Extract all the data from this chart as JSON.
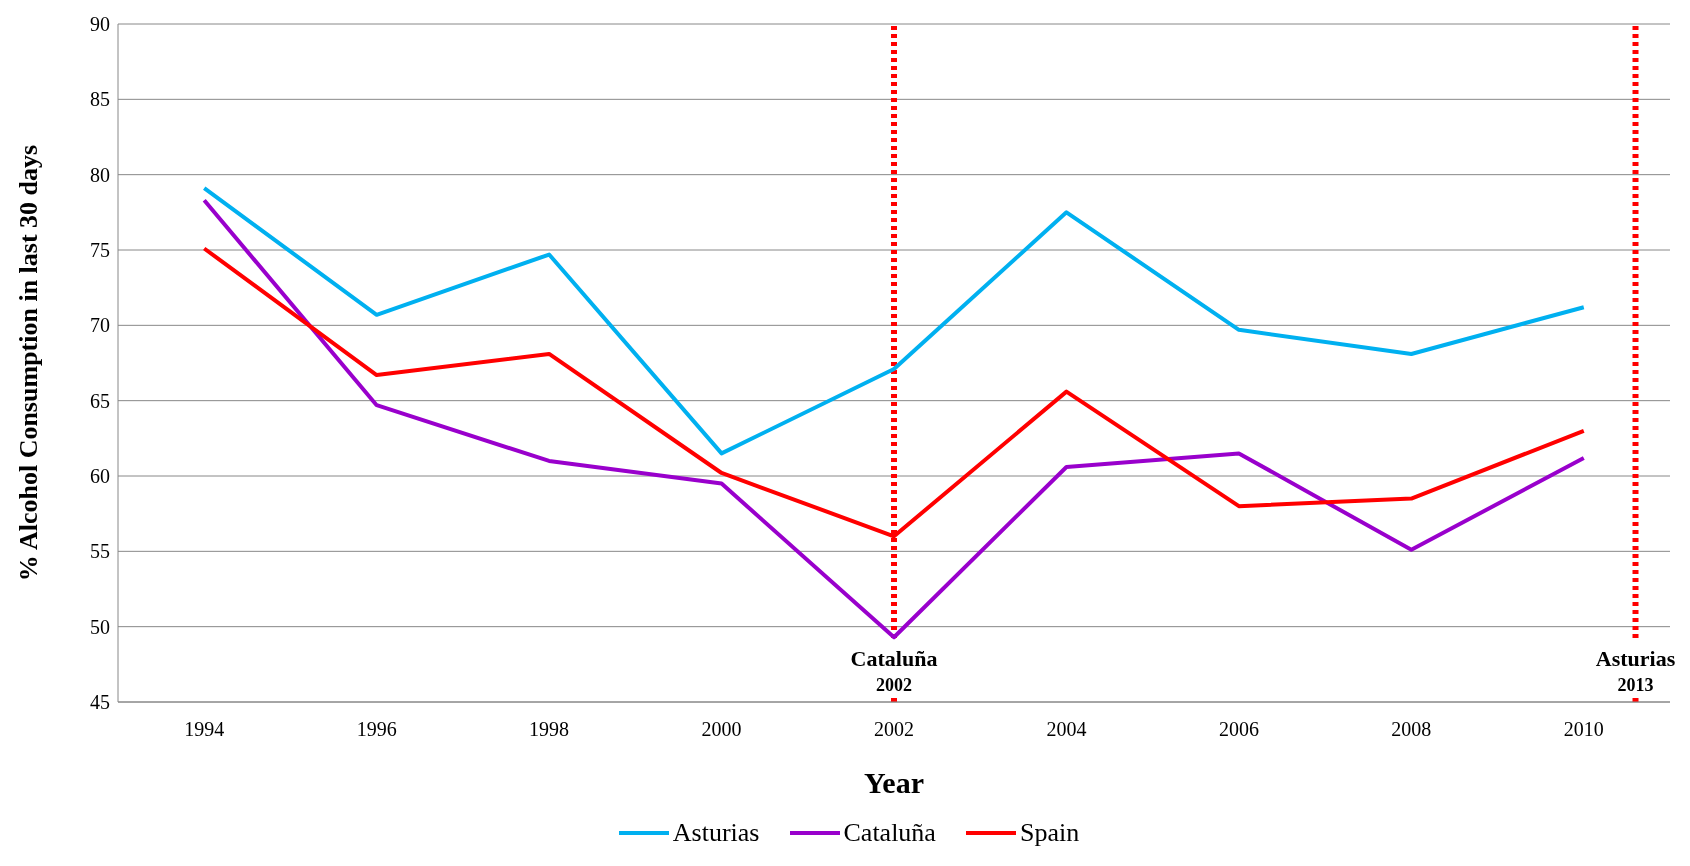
{
  "chart_data": {
    "type": "line",
    "xlabel": "Year",
    "ylabel": "% Alcohol Consumption in last 30 days",
    "x": [
      1994,
      1996,
      1998,
      2000,
      2002,
      2004,
      2006,
      2008,
      2010
    ],
    "xlim": [
      1993,
      2011
    ],
    "xticks": [
      1994,
      1996,
      1998,
      2000,
      2002,
      2004,
      2006,
      2008,
      2010
    ],
    "ylim": [
      45,
      90
    ],
    "yticks": [
      45,
      50,
      55,
      60,
      65,
      70,
      75,
      80,
      85,
      90
    ],
    "series": [
      {
        "name": "Asturias",
        "color": "#00b0f0",
        "values": [
          79.1,
          70.7,
          74.7,
          61.5,
          67.1,
          77.5,
          69.7,
          68.1,
          71.2
        ]
      },
      {
        "name": "Cataluña",
        "color": "#9900cc",
        "values": [
          78.3,
          64.7,
          61.0,
          59.5,
          49.3,
          60.6,
          61.5,
          55.1,
          61.2
        ]
      },
      {
        "name": "Spain",
        "color": "#ff0000",
        "values": [
          75.1,
          66.7,
          68.1,
          60.2,
          56.0,
          65.6,
          58.0,
          58.5,
          63.0
        ]
      }
    ],
    "ref_lines": [
      {
        "axis": "x",
        "value": 2002,
        "label": "Cataluña 2002",
        "color": "#ff0000",
        "line_style": "dotted"
      },
      {
        "axis": "x",
        "value": 2010.6,
        "label": "Asturias 2013",
        "color": "#ff0000",
        "line_style": "dotted"
      }
    ],
    "grid": "y",
    "legend": "bottom",
    "marker": "none",
    "line_style": "solid"
  }
}
